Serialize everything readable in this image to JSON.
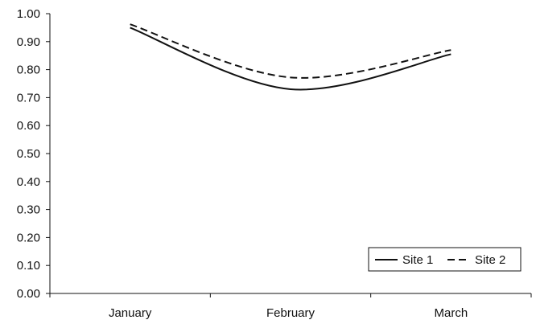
{
  "chart_data": {
    "type": "line",
    "categories": [
      "January",
      "February",
      "March"
    ],
    "series": [
      {
        "name": "Site 1",
        "values": [
          0.95,
          0.73,
          0.855
        ],
        "line_style": "solid",
        "color": "#111111"
      },
      {
        "name": "Site 2",
        "values": [
          0.962,
          0.772,
          0.87
        ],
        "line_style": "dashed",
        "color": "#111111"
      }
    ],
    "ylim": [
      0,
      1
    ],
    "y_ticks": [
      "0.00",
      "0.10",
      "0.20",
      "0.30",
      "0.40",
      "0.50",
      "0.60",
      "0.70",
      "0.80",
      "0.90",
      "1.00"
    ],
    "grid": false,
    "legend_position": "bottom-right",
    "title": "",
    "xlabel": "",
    "ylabel": ""
  }
}
